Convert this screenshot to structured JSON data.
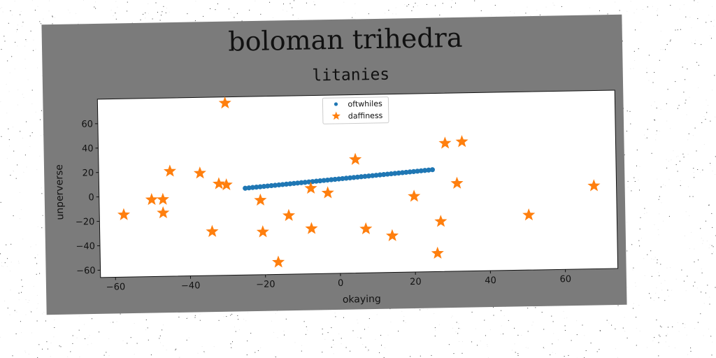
{
  "chart_data": {
    "type": "scatter",
    "title": "boloman trihedra",
    "subtitle": "litanies",
    "xlabel": "okaying",
    "ylabel": "unperverse",
    "xlim": [
      -64,
      74
    ],
    "ylim": [
      -66,
      80
    ],
    "xticks": [
      -60,
      -40,
      -20,
      0,
      20,
      40,
      60
    ],
    "yticks": [
      -60,
      -40,
      -20,
      0,
      20,
      40,
      60
    ],
    "grid": false,
    "legend_position": "top-center",
    "series": [
      {
        "name": "oftwhiles",
        "marker": "circle",
        "color": "#1f77b4",
        "x": [
          -25.0,
          -24.0,
          -23.0,
          -22.0,
          -21.0,
          -20.0,
          -19.0,
          -18.0,
          -17.0,
          -16.0,
          -15.0,
          -14.0,
          -13.0,
          -12.0,
          -11.0,
          -10.0,
          -9.0,
          -8.0,
          -7.0,
          -6.0,
          -5.0,
          -4.0,
          -3.0,
          -2.0,
          -1.0,
          0.0,
          1.0,
          2.0,
          3.0,
          4.0,
          5.0,
          6.0,
          7.0,
          8.0,
          9.0,
          10.0,
          11.0,
          12.0,
          13.0,
          14.0,
          15.0,
          16.0,
          17.0,
          18.0,
          19.0,
          20.0,
          21.0,
          22.0,
          23.0,
          24.0,
          25.0
        ],
        "y": [
          5.0,
          5.25,
          5.5,
          5.75,
          6.0,
          6.25,
          6.5,
          6.75,
          7.0,
          7.25,
          7.5,
          7.75,
          8.0,
          8.25,
          8.5,
          8.75,
          9.0,
          9.25,
          9.5,
          9.75,
          10.0,
          10.25,
          10.5,
          10.75,
          11.0,
          11.25,
          11.5,
          11.75,
          12.0,
          12.25,
          12.5,
          12.75,
          13.0,
          13.25,
          13.5,
          13.75,
          14.0,
          14.25,
          14.5,
          14.75,
          15.0,
          15.25,
          15.5,
          15.75,
          16.0,
          16.25,
          16.5,
          16.75,
          17.0,
          17.25,
          17.5
        ]
      },
      {
        "name": "daffiness",
        "marker": "star",
        "color": "#ff7f0e",
        "x": [
          -57.5,
          -50,
          -47,
          -47,
          -45,
          -37,
          -34,
          -32,
          -30,
          -30,
          -21,
          -20.5,
          -16.5,
          -13.5,
          -7.5,
          -7.5,
          -3,
          4.5,
          7,
          14,
          20,
          26,
          27,
          28.5,
          31.5,
          33,
          50.5,
          68
        ],
        "y": [
          -15,
          -3,
          -3,
          -14,
          20,
          18,
          -30,
          9,
          8,
          75,
          -5,
          -31,
          -56,
          -18,
          -29,
          4,
          0,
          27,
          -30,
          -36,
          -4,
          -51,
          -25,
          39,
          6,
          40,
          -21,
          2
        ]
      }
    ]
  }
}
